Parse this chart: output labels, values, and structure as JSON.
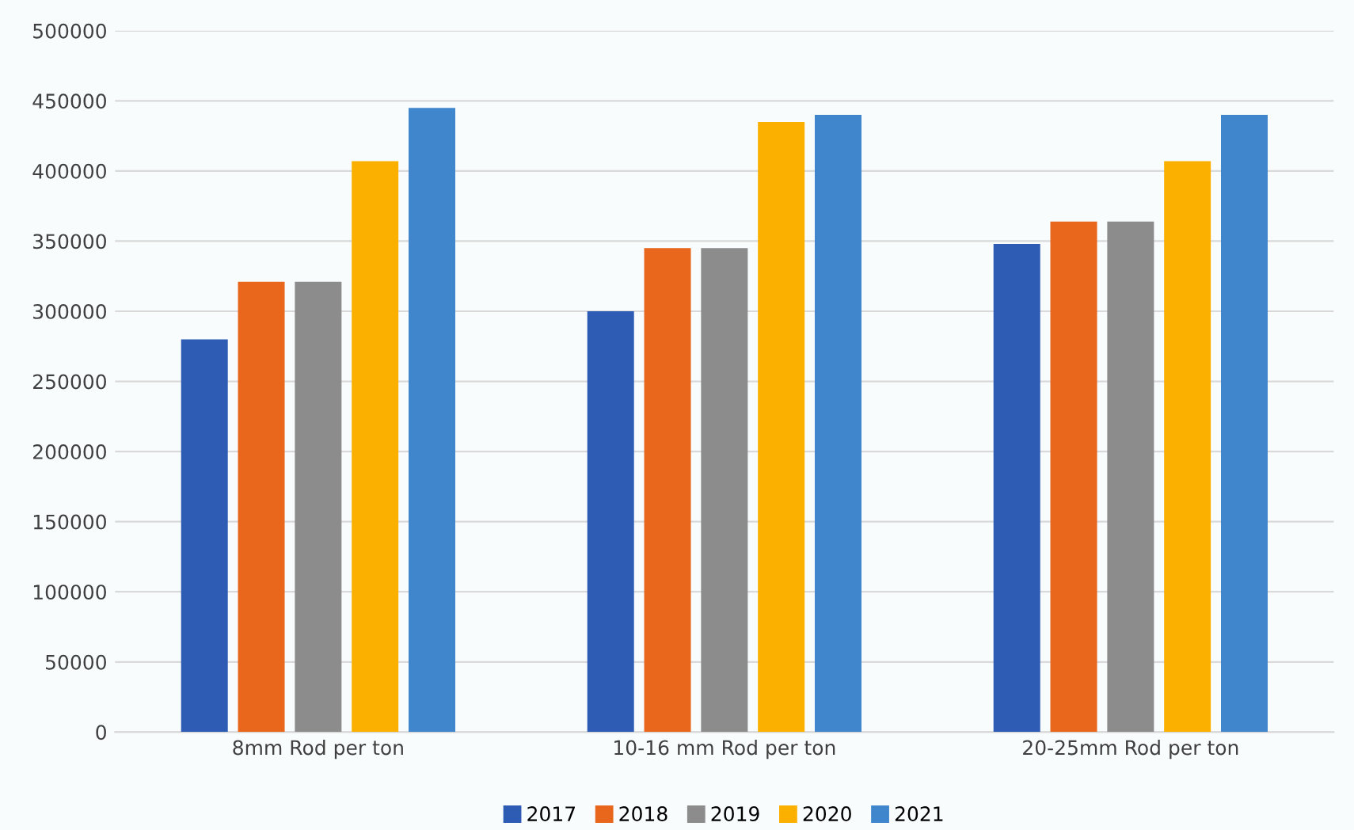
{
  "chart_data": {
    "type": "bar",
    "categories": [
      "8mm Rod per ton",
      "10-16 mm Rod per ton",
      "20-25mm Rod per ton"
    ],
    "series": [
      {
        "name": "2017",
        "color": "#2e5cb5",
        "values": [
          280000,
          300000,
          348000
        ]
      },
      {
        "name": "2018",
        "color": "#e8671c",
        "values": [
          321000,
          345000,
          364000
        ]
      },
      {
        "name": "2019",
        "color": "#8c8c8c",
        "values": [
          321000,
          345000,
          364000
        ]
      },
      {
        "name": "2020",
        "color": "#fbb000",
        "values": [
          407000,
          435000,
          407000
        ]
      },
      {
        "name": "2021",
        "color": "#3f86cc",
        "values": [
          445000,
          440000,
          440000
        ]
      }
    ],
    "ylim": [
      0,
      500000
    ],
    "yticks": [
      0,
      50000,
      100000,
      150000,
      200000,
      250000,
      300000,
      350000,
      400000,
      450000,
      500000
    ],
    "grid": "y",
    "legend": "bottom"
  }
}
